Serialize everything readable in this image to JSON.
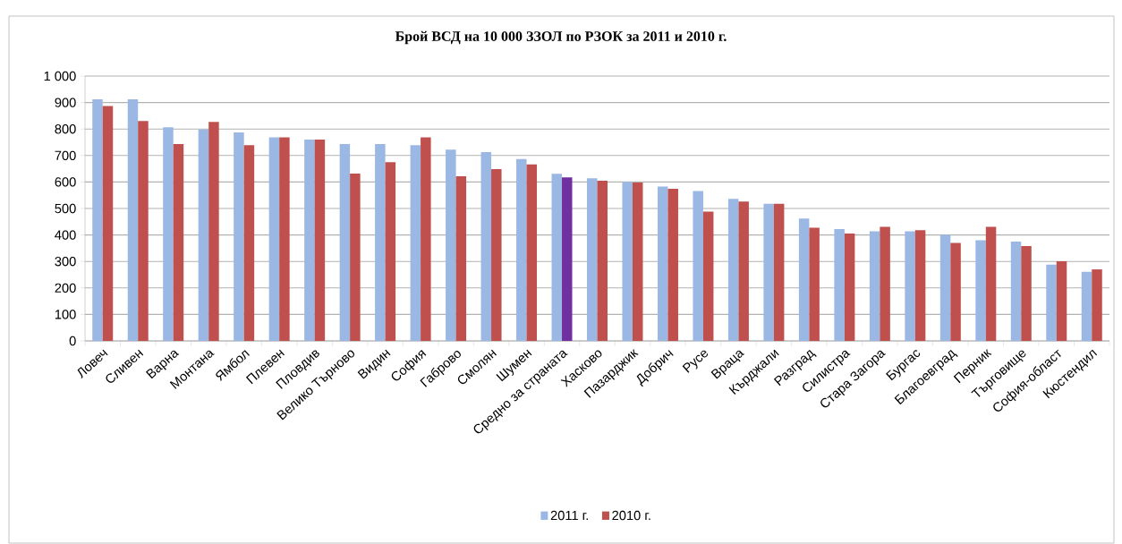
{
  "chart_data": {
    "type": "bar",
    "title": "Брой ВСД на 10 000 ЗЗОЛ по РЗОК за 2011 и 2010 г.",
    "categories": [
      "Ловеч",
      "Сливен",
      "Варна",
      "Монтана",
      "Ямбол",
      "Плевен",
      "Пловдив",
      "Велико Търново",
      "Видин",
      "София",
      "Габрово",
      "Смолян",
      "Шумен",
      "Средно за страната",
      "Хасково",
      "Пазарджик",
      "Добрич",
      "Русе",
      "Враца",
      "Кърджали",
      "Разград",
      "Силистра",
      "Стара Загора",
      "Бургас",
      "Благоевград",
      "Перник",
      "Търговище",
      "София-област",
      "Кюстендил"
    ],
    "series": [
      {
        "name": "2011 г.",
        "color": "#9bb7e3",
        "values": [
          912,
          912,
          807,
          798,
          787,
          769,
          760,
          743,
          743,
          739,
          722,
          713,
          687,
          631,
          614,
          600,
          583,
          566,
          536,
          518,
          462,
          422,
          414,
          414,
          400,
          380,
          375,
          288,
          261
        ]
      },
      {
        "name": "2010 г.",
        "color": "#c0504d",
        "colors": [
          "#c0504d",
          "#c0504d",
          "#c0504d",
          "#c0504d",
          "#c0504d",
          "#c0504d",
          "#c0504d",
          "#c0504d",
          "#c0504d",
          "#c0504d",
          "#c0504d",
          "#c0504d",
          "#c0504d",
          "#7030a0",
          "#c0504d",
          "#c0504d",
          "#c0504d",
          "#c0504d",
          "#c0504d",
          "#c0504d",
          "#c0504d",
          "#c0504d",
          "#c0504d",
          "#c0504d",
          "#c0504d",
          "#c0504d",
          "#c0504d",
          "#c0504d",
          "#c0504d"
        ],
        "values": [
          887,
          830,
          743,
          827,
          739,
          769,
          760,
          632,
          675,
          769,
          622,
          649,
          666,
          617,
          605,
          598,
          574,
          488,
          526,
          518,
          427,
          405,
          431,
          418,
          370,
          431,
          358,
          301,
          270
        ]
      }
    ],
    "ylim": [
      0,
      1000
    ],
    "yticks": [
      0,
      100,
      200,
      300,
      400,
      500,
      600,
      700,
      800,
      900,
      {
        "value": 1000,
        "label": "1 000"
      }
    ],
    "grid": "y",
    "legend": "bottom"
  }
}
